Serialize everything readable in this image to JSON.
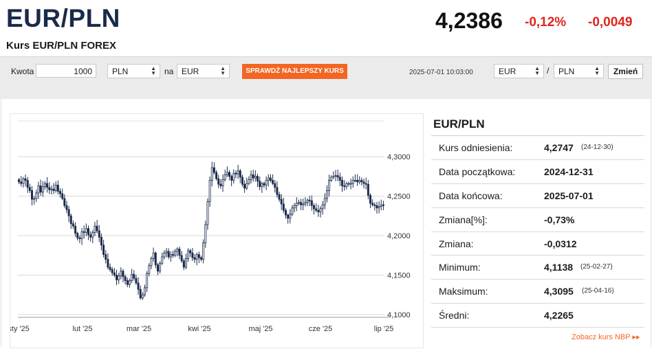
{
  "header": {
    "pair": "EUR/PLN",
    "subtitle": "Kurs EUR/PLN FOREX",
    "price": "4,2386",
    "change_pct": "-0,12%",
    "change_abs": "-0,0049"
  },
  "converter": {
    "amount_label": "Kwota",
    "amount_value": "1000",
    "from_currency": "PLN",
    "to_label": "na",
    "to_currency": "EUR",
    "check_button": "SPRAWDŹ NAJLEPSZY KURS",
    "timestamp": "2025-07-01 10:03:00",
    "base_currency": "EUR",
    "separator": "/",
    "quote_currency": "PLN",
    "change_button": "Zmień"
  },
  "stats": {
    "title": "EUR/PLN",
    "rows": [
      {
        "label": "Kurs odniesienia:",
        "value": "4,2747",
        "date": "(24-12-30)"
      },
      {
        "label": "Data początkowa:",
        "value": "2024-12-31",
        "date": ""
      },
      {
        "label": "Data końcowa:",
        "value": "2025-07-01",
        "date": ""
      },
      {
        "label": "Zmiana[%]:",
        "value": "-0,73%",
        "date": ""
      },
      {
        "label": "Zmiana:",
        "value": "-0,0312",
        "date": ""
      },
      {
        "label": "Minimum:",
        "value": "4,1138",
        "date": "(25-02-27)"
      },
      {
        "label": "Maksimum:",
        "value": "4,3095",
        "date": "(25-04-16)"
      },
      {
        "label": "Średni:",
        "value": "4,2265",
        "date": ""
      }
    ],
    "nbp_link": "Zobacz kurs NBP ▸▸"
  },
  "colors": {
    "accent": "#f26522",
    "negative": "#e0251f",
    "title": "#1a2a4a",
    "candle_down": "#1a2a4a"
  },
  "chart_data": {
    "type": "candlestick",
    "x_labels": [
      "sty '25",
      "lut '25",
      "mar '25",
      "kwi '25",
      "maj '25",
      "cze '25",
      "lip '25"
    ],
    "y_ticks": [
      "4,1000",
      "4,1500",
      "4,2000",
      "4,2500",
      "4,3000"
    ],
    "y_tick_values": [
      4.1,
      4.15,
      4.2,
      4.25,
      4.3
    ],
    "ylim": [
      4.1,
      4.3
    ],
    "grid": true,
    "close": [
      4.268,
      4.266,
      4.272,
      4.27,
      4.261,
      4.257,
      4.246,
      4.247,
      4.254,
      4.263,
      4.255,
      4.262,
      4.266,
      4.261,
      4.258,
      4.259,
      4.257,
      4.264,
      4.256,
      4.253,
      4.247,
      4.238,
      4.233,
      4.225,
      4.215,
      4.212,
      4.203,
      4.197,
      4.196,
      4.205,
      4.204,
      4.209,
      4.201,
      4.198,
      4.204,
      4.212,
      4.206,
      4.198,
      4.188,
      4.176,
      4.17,
      4.16,
      4.157,
      4.153,
      4.15,
      4.144,
      4.149,
      4.155,
      4.148,
      4.143,
      4.138,
      4.143,
      4.151,
      4.146,
      4.14,
      4.132,
      4.121,
      4.125,
      4.134,
      4.152,
      4.162,
      4.171,
      4.178,
      4.163,
      4.155,
      4.165,
      4.173,
      4.178,
      4.18,
      4.173,
      4.176,
      4.175,
      4.18,
      4.183,
      4.175,
      4.168,
      4.16,
      4.171,
      4.181,
      4.178,
      4.172,
      4.17,
      4.176,
      4.172,
      4.17,
      4.191,
      4.214,
      4.243,
      4.27,
      4.286,
      4.28,
      4.272,
      4.265,
      4.263,
      4.271,
      4.277,
      4.28,
      4.275,
      4.27,
      4.279,
      4.278,
      4.282,
      4.274,
      4.265,
      4.26,
      4.266,
      4.271,
      4.277,
      4.273,
      4.275,
      4.269,
      4.262,
      4.266,
      4.264,
      4.27,
      4.273,
      4.27,
      4.266,
      4.261,
      4.252,
      4.246,
      4.24,
      4.232,
      4.226,
      4.222,
      4.227,
      4.235,
      4.238,
      4.241,
      4.242,
      4.239,
      4.24,
      4.242,
      4.245,
      4.244,
      4.238,
      4.234,
      4.232,
      4.23,
      4.234,
      4.239,
      4.247,
      4.257,
      4.27,
      4.274,
      4.275,
      4.276,
      4.274,
      4.27,
      4.263,
      4.262,
      4.266,
      4.266,
      4.266,
      4.27,
      4.27,
      4.268,
      4.27,
      4.268,
      4.266,
      4.265,
      4.251,
      4.241,
      4.239,
      4.238,
      4.235,
      4.237,
      4.239,
      4.238
    ]
  }
}
